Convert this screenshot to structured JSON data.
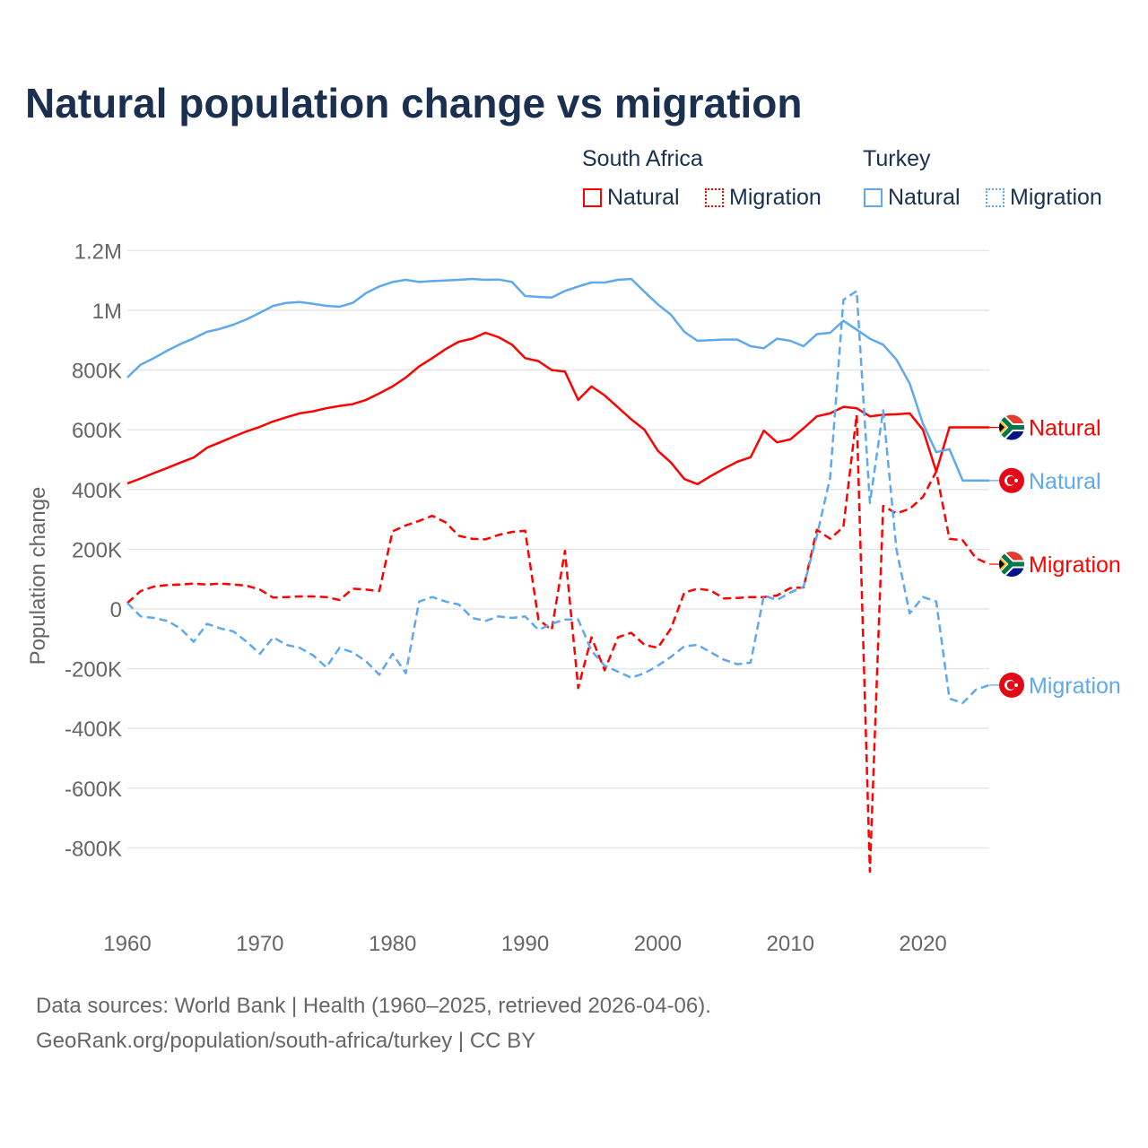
{
  "title": "Natural population change vs migration",
  "legend": {
    "groups": [
      {
        "name": "South Africa",
        "items": [
          "Natural",
          "Migration"
        ],
        "color": "#ff0000"
      },
      {
        "name": "Turkey",
        "items": [
          "Natural",
          "Migration"
        ],
        "color": "#5ea8ee"
      }
    ]
  },
  "footer": {
    "line1": "Data sources: World Bank | Health (1960–2025, retrieved 2026-04-06).",
    "line2": "GeoRank.org/population/south-africa/turkey | CC BY"
  },
  "chart_data": {
    "type": "line",
    "title": "Natural population change vs migration",
    "xlabel": "",
    "ylabel": "Population change",
    "xlim": [
      1960,
      2025
    ],
    "ylim": [
      -1000000,
      1200000
    ],
    "x_ticks": [
      "1960",
      "1970",
      "1980",
      "1990",
      "2000",
      "2010",
      "2020"
    ],
    "x_tick_values": [
      1960,
      1970,
      1980,
      1990,
      2000,
      2010,
      2020
    ],
    "y_ticks": [
      "1.2M",
      "1M",
      "800K",
      "600K",
      "400K",
      "200K",
      "0",
      "-200K",
      "-400K",
      "-600K",
      "-800K"
    ],
    "y_tick_values": [
      1200000,
      1000000,
      800000,
      600000,
      400000,
      200000,
      0,
      -200000,
      -400000,
      -600000,
      -800000
    ],
    "grid": true,
    "legend_position": "top-right",
    "x_start": 1960,
    "unit": "thousands",
    "series": [
      {
        "name": "South Africa Natural",
        "end_label": "Natural",
        "country": "South Africa",
        "color": "#ff0000",
        "dash": false,
        "values": [
          420,
          437,
          455,
          472,
          490,
          507,
          540,
          558,
          577,
          595,
          610,
          628,
          642,
          655,
          662,
          672,
          680,
          686,
          700,
          722,
          745,
          775,
          812,
          840,
          870,
          895,
          905,
          925,
          910,
          885,
          840,
          830,
          800,
          795,
          700,
          745,
          715,
          675,
          635,
          600,
          530,
          490,
          435,
          418,
          445,
          470,
          493,
          508,
          597,
          558,
          568,
          605,
          645,
          655,
          677,
          672,
          645,
          650,
          652,
          655,
          600,
          460,
          608,
          608,
          608,
          608
        ]
      },
      {
        "name": "Turkey Natural",
        "end_label": "Natural",
        "country": "Turkey",
        "color": "#5ea8ee",
        "dash": false,
        "values": [
          775,
          818,
          840,
          865,
          887,
          906,
          928,
          938,
          952,
          970,
          992,
          1015,
          1025,
          1028,
          1022,
          1015,
          1012,
          1025,
          1058,
          1080,
          1095,
          1102,
          1095,
          1098,
          1100,
          1102,
          1105,
          1102,
          1103,
          1095,
          1048,
          1045,
          1043,
          1065,
          1080,
          1093,
          1093,
          1102,
          1105,
          1062,
          1020,
          985,
          928,
          898,
          900,
          902,
          902,
          880,
          873,
          905,
          898,
          880,
          920,
          925,
          965,
          935,
          905,
          885,
          835,
          755,
          620,
          525,
          535,
          430,
          430,
          430
        ]
      },
      {
        "name": "South Africa Migration",
        "end_label": "Migration",
        "country": "South Africa",
        "color": "#ff0000",
        "dash": true,
        "values": [
          20,
          60,
          75,
          80,
          82,
          85,
          82,
          85,
          82,
          78,
          65,
          38,
          40,
          42,
          42,
          40,
          30,
          68,
          65,
          60,
          260,
          280,
          295,
          312,
          290,
          245,
          235,
          233,
          248,
          258,
          262,
          -35,
          -70,
          195,
          -265,
          -95,
          -205,
          -95,
          -80,
          -120,
          -130,
          -65,
          55,
          68,
          62,
          35,
          37,
          40,
          40,
          45,
          70,
          72,
          265,
          235,
          275,
          650,
          -880,
          345,
          320,
          335,
          375,
          460,
          235,
          230,
          170,
          150
        ]
      },
      {
        "name": "Turkey Migration",
        "end_label": "Migration",
        "country": "Turkey",
        "color": "#5ea8ee",
        "dash": true,
        "values": [
          20,
          -25,
          -30,
          -40,
          -65,
          -110,
          -50,
          -65,
          -75,
          -110,
          -150,
          -95,
          -120,
          -130,
          -155,
          -195,
          -130,
          -145,
          -175,
          -220,
          -150,
          -215,
          25,
          40,
          25,
          15,
          -30,
          -40,
          -25,
          -30,
          -25,
          -70,
          -50,
          -35,
          -35,
          -140,
          -190,
          -210,
          -230,
          -215,
          -190,
          -160,
          -125,
          -120,
          -145,
          -170,
          -185,
          -180,
          45,
          30,
          55,
          75,
          245,
          440,
          1035,
          1065,
          355,
          665,
          200,
          -15,
          40,
          25,
          -300,
          -315,
          -270,
          -255
        ]
      }
    ]
  }
}
